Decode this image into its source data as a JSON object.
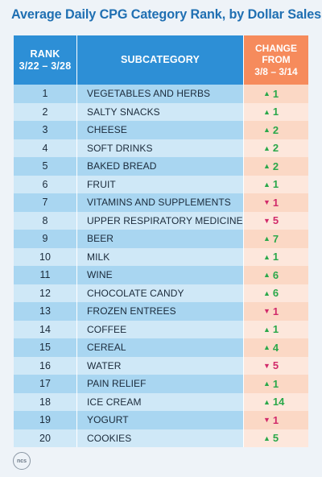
{
  "title": "Average Daily CPG Category Rank, by Dollar Sales",
  "headers": {
    "rank_line1": "RANK",
    "rank_line2": "3/22 – 3/28",
    "subcategory": "SUBCATEGORY",
    "change_line1": "CHANGE",
    "change_line2": "FROM",
    "change_line3": "3/8 – 3/14"
  },
  "colors": {
    "title": "#1f6fb2",
    "header_blue": "#2d8fd6",
    "header_orange": "#f68b5c",
    "up": "#2aa84a",
    "down": "#d12a6a"
  },
  "rows": [
    {
      "rank": "1",
      "subcategory": "VEGETABLES AND HERBS",
      "direction": "up",
      "change": "1"
    },
    {
      "rank": "2",
      "subcategory": "SALTY SNACKS",
      "direction": "up",
      "change": "1"
    },
    {
      "rank": "3",
      "subcategory": "CHEESE",
      "direction": "up",
      "change": "2"
    },
    {
      "rank": "4",
      "subcategory": "SOFT DRINKS",
      "direction": "up",
      "change": "2"
    },
    {
      "rank": "5",
      "subcategory": "BAKED BREAD",
      "direction": "up",
      "change": "2"
    },
    {
      "rank": "6",
      "subcategory": "FRUIT",
      "direction": "up",
      "change": "1"
    },
    {
      "rank": "7",
      "subcategory": "VITAMINS AND SUPPLEMENTS",
      "direction": "down",
      "change": "1"
    },
    {
      "rank": "8",
      "subcategory": "UPPER RESPIRATORY MEDICINE",
      "direction": "down",
      "change": "5"
    },
    {
      "rank": "9",
      "subcategory": "BEER",
      "direction": "up",
      "change": "7"
    },
    {
      "rank": "10",
      "subcategory": "MILK",
      "direction": "up",
      "change": "1"
    },
    {
      "rank": "11",
      "subcategory": "WINE",
      "direction": "up",
      "change": "6"
    },
    {
      "rank": "12",
      "subcategory": "CHOCOLATE CANDY",
      "direction": "up",
      "change": "6"
    },
    {
      "rank": "13",
      "subcategory": "FROZEN ENTREES",
      "direction": "down",
      "change": "1"
    },
    {
      "rank": "14",
      "subcategory": "COFFEE",
      "direction": "up",
      "change": "1"
    },
    {
      "rank": "15",
      "subcategory": "CEREAL",
      "direction": "up",
      "change": "4"
    },
    {
      "rank": "16",
      "subcategory": "WATER",
      "direction": "down",
      "change": "5"
    },
    {
      "rank": "17",
      "subcategory": "PAIN RELIEF",
      "direction": "up",
      "change": "1"
    },
    {
      "rank": "18",
      "subcategory": "ICE CREAM",
      "direction": "up",
      "change": "14"
    },
    {
      "rank": "19",
      "subcategory": "YOGURT",
      "direction": "down",
      "change": "1"
    },
    {
      "rank": "20",
      "subcategory": "COOKIES",
      "direction": "up",
      "change": "5"
    }
  ],
  "logo": {
    "text": "ncs",
    "icon": "ncs-logo-icon"
  }
}
